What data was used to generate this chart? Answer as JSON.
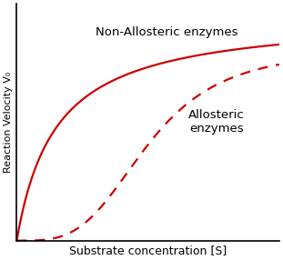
{
  "title": "",
  "xlabel": "Substrate concentration [S]",
  "ylabel": "Reaction Velocity V₀",
  "label_non_allosteric": "Non-Allosteric enzymes",
  "label_allosteric": "Allosteric\nenzymes",
  "curve_color": "#cc0000",
  "background_color": "#ffffff",
  "plot_bg_color": "#ffffff",
  "vmax_non_allosteric": 1.0,
  "km_non_allosteric": 0.15,
  "vmax_allosteric": 0.85,
  "km_allosteric": 0.5,
  "n_allosteric": 3.5,
  "xlim": [
    0,
    1
  ],
  "ylim": [
    0,
    1.05
  ],
  "line_width": 1.6,
  "xlabel_fontsize": 9,
  "ylabel_fontsize": 8,
  "annotation_fontsize": 9.5
}
